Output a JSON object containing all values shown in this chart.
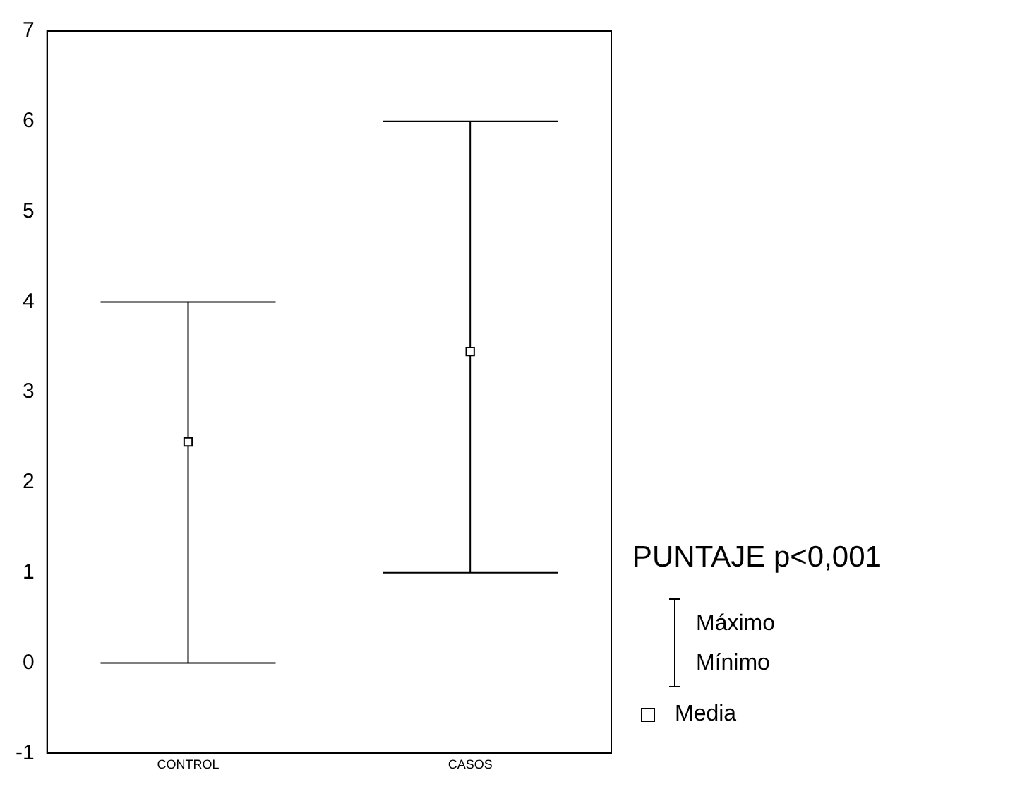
{
  "chart_data": {
    "type": "scatter",
    "categories": [
      "CONTROL",
      "CASOS"
    ],
    "series": [
      {
        "name": "Media",
        "color": "#000000",
        "values": [
          2.45,
          3.45
        ],
        "errors": [
          [
            0,
            4
          ],
          [
            1,
            6
          ]
        ]
      }
    ],
    "ylim": [
      -1,
      7
    ],
    "yticks": [
      -1,
      0,
      1,
      2,
      3,
      4,
      5,
      6,
      7
    ],
    "grid": false,
    "legend": "right",
    "legend_title": "PUNTAJE p<0,001",
    "marker": "square",
    "annotations": [
      "Máximo",
      "Mínimo"
    ]
  }
}
